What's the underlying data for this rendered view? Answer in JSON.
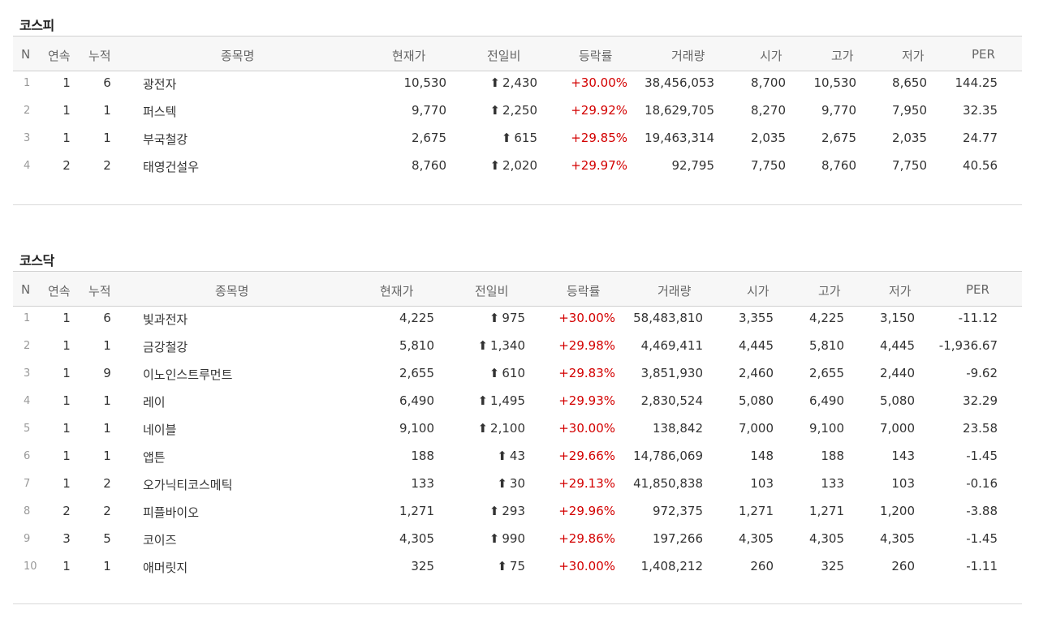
{
  "sections": [
    {
      "title": "코스피",
      "headers": {
        "n": "N",
        "consec": "연속",
        "acc": "누적",
        "name": "종목명",
        "price": "현재가",
        "change": "전일비",
        "rate": "등락률",
        "volume": "거래량",
        "open": "시가",
        "high": "고가",
        "low": "저가",
        "per": "PER"
      },
      "rows": [
        {
          "n": "1",
          "consec": "1",
          "acc": "6",
          "name": "광전자",
          "price": "10,530",
          "change": "2,430",
          "rate": "+30.00%",
          "volume": "38,456,053",
          "open": "8,700",
          "high": "10,530",
          "low": "8,650",
          "per": "144.25"
        },
        {
          "n": "2",
          "consec": "1",
          "acc": "1",
          "name": "퍼스텍",
          "price": "9,770",
          "change": "2,250",
          "rate": "+29.92%",
          "volume": "18,629,705",
          "open": "8,270",
          "high": "9,770",
          "low": "7,950",
          "per": "32.35"
        },
        {
          "n": "3",
          "consec": "1",
          "acc": "1",
          "name": "부국철강",
          "price": "2,675",
          "change": "615",
          "rate": "+29.85%",
          "volume": "19,463,314",
          "open": "2,035",
          "high": "2,675",
          "low": "2,035",
          "per": "24.77"
        },
        {
          "n": "4",
          "consec": "2",
          "acc": "2",
          "name": "태영건설우",
          "price": "8,760",
          "change": "2,020",
          "rate": "+29.97%",
          "volume": "92,795",
          "open": "7,750",
          "high": "8,760",
          "low": "7,750",
          "per": "40.56"
        }
      ]
    },
    {
      "title": "코스닥",
      "headers": {
        "n": "N",
        "consec": "연속",
        "acc": "누적",
        "name": "종목명",
        "price": "현재가",
        "change": "전일비",
        "rate": "등락률",
        "volume": "거래량",
        "open": "시가",
        "high": "고가",
        "low": "저가",
        "per": "PER"
      },
      "rows": [
        {
          "n": "1",
          "consec": "1",
          "acc": "6",
          "name": "빛과전자",
          "price": "4,225",
          "change": "975",
          "rate": "+30.00%",
          "volume": "58,483,810",
          "open": "3,355",
          "high": "4,225",
          "low": "3,150",
          "per": "-11.12"
        },
        {
          "n": "2",
          "consec": "1",
          "acc": "1",
          "name": "금강철강",
          "price": "5,810",
          "change": "1,340",
          "rate": "+29.98%",
          "volume": "4,469,411",
          "open": "4,445",
          "high": "5,810",
          "low": "4,445",
          "per": "-1,936.67"
        },
        {
          "n": "3",
          "consec": "1",
          "acc": "9",
          "name": "이노인스트루먼트",
          "price": "2,655",
          "change": "610",
          "rate": "+29.83%",
          "volume": "3,851,930",
          "open": "2,460",
          "high": "2,655",
          "low": "2,440",
          "per": "-9.62"
        },
        {
          "n": "4",
          "consec": "1",
          "acc": "1",
          "name": "레이",
          "price": "6,490",
          "change": "1,495",
          "rate": "+29.93%",
          "volume": "2,830,524",
          "open": "5,080",
          "high": "6,490",
          "low": "5,080",
          "per": "32.29"
        },
        {
          "n": "5",
          "consec": "1",
          "acc": "1",
          "name": "네이블",
          "price": "9,100",
          "change": "2,100",
          "rate": "+30.00%",
          "volume": "138,842",
          "open": "7,000",
          "high": "9,100",
          "low": "7,000",
          "per": "23.58"
        },
        {
          "n": "6",
          "consec": "1",
          "acc": "1",
          "name": "앱튼",
          "price": "188",
          "change": "43",
          "rate": "+29.66%",
          "volume": "14,786,069",
          "open": "148",
          "high": "188",
          "low": "143",
          "per": "-1.45"
        },
        {
          "n": "7",
          "consec": "1",
          "acc": "2",
          "name": "오가닉티코스메틱",
          "price": "133",
          "change": "30",
          "rate": "+29.13%",
          "volume": "41,850,838",
          "open": "103",
          "high": "133",
          "low": "103",
          "per": "-0.16"
        },
        {
          "n": "8",
          "consec": "2",
          "acc": "2",
          "name": "피플바이오",
          "price": "1,271",
          "change": "293",
          "rate": "+29.96%",
          "volume": "972,375",
          "open": "1,271",
          "high": "1,271",
          "low": "1,200",
          "per": "-3.88"
        },
        {
          "n": "9",
          "consec": "3",
          "acc": "5",
          "name": "코이즈",
          "price": "4,305",
          "change": "990",
          "rate": "+29.86%",
          "volume": "197,266",
          "open": "4,305",
          "high": "4,305",
          "low": "4,305",
          "per": "-1.45"
        },
        {
          "n": "10",
          "consec": "1",
          "acc": "1",
          "name": "애머릿지",
          "price": "325",
          "change": "75",
          "rate": "+30.00%",
          "volume": "1,408,212",
          "open": "260",
          "high": "325",
          "low": "260",
          "per": "-1.11"
        }
      ]
    }
  ],
  "icons": {
    "up_arrow": "up-arrow-icon"
  },
  "colors": {
    "up": "#d30000",
    "header_bg": "#f7f7f7"
  }
}
